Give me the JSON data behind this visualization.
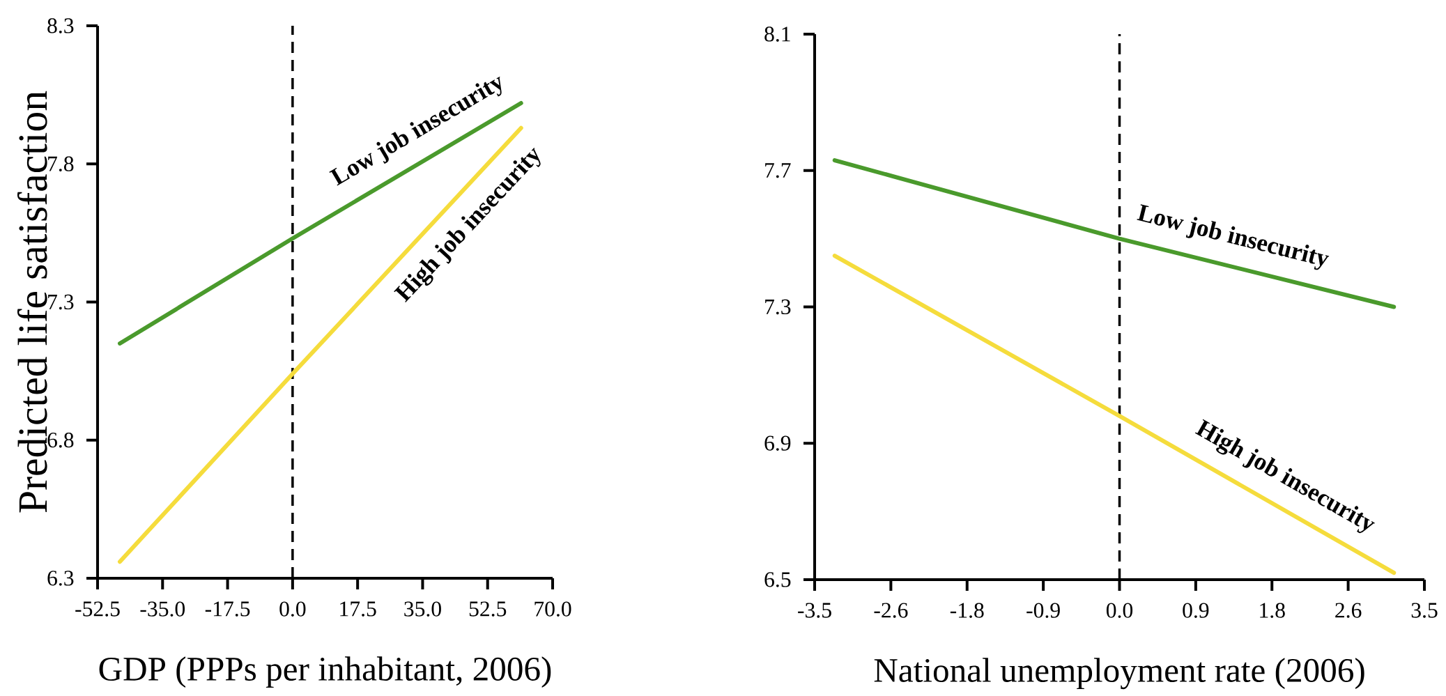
{
  "chart_data": [
    {
      "type": "line",
      "ylabel": "Predicted life satisfaction",
      "xlabel": "GDP (PPPs per inhabitant, 2006)",
      "x": [
        -46.5,
        0,
        61.5
      ],
      "xlim": [
        -52.5,
        70
      ],
      "xticks": [
        {
          "value": -52.5,
          "label": "-52.5"
        },
        {
          "value": -35,
          "label": "-35.0"
        },
        {
          "value": -17.5,
          "label": "-17.5"
        },
        {
          "value": 0,
          "label": "0.0"
        },
        {
          "value": 17.5,
          "label": "17.5"
        },
        {
          "value": 35,
          "label": "35.0"
        },
        {
          "value": 52.5,
          "label": "52.5"
        },
        {
          "value": 70,
          "label": "70.0"
        }
      ],
      "ylim": [
        6.3,
        8.3
      ],
      "yticks": [
        6.3,
        6.8,
        7.3,
        7.8,
        8.3
      ],
      "series": [
        {
          "name": "Low job insecurity",
          "color": "#4a9a2c",
          "values": [
            7.15,
            7.53,
            8.02
          ]
        },
        {
          "name": "High job insecurity",
          "color": "#f5dc3c",
          "values": [
            6.36,
            7.04,
            7.93
          ]
        }
      ],
      "ref_lines": [
        {
          "axis": "x",
          "value": 0,
          "color": "#000000",
          "line_style": "dashed"
        }
      ]
    },
    {
      "type": "line",
      "xlabel": "National unemployment rate (2006)",
      "x": [
        -3.27,
        0,
        3.15
      ],
      "xlim": [
        -3.5,
        3.5
      ],
      "xticks": [
        {
          "value": -3.5,
          "label": "-3.5"
        },
        {
          "value": -2.625,
          "label": "-2.6"
        },
        {
          "value": -1.75,
          "label": "-1.8"
        },
        {
          "value": -0.875,
          "label": "-0.9"
        },
        {
          "value": 0,
          "label": "0.0"
        },
        {
          "value": 0.875,
          "label": "0.9"
        },
        {
          "value": 1.75,
          "label": "1.8"
        },
        {
          "value": 2.625,
          "label": "2.6"
        },
        {
          "value": 3.5,
          "label": "3.5"
        }
      ],
      "ylim": [
        6.5,
        8.1
      ],
      "yticks": [
        6.5,
        6.9,
        7.3,
        7.7,
        8.1
      ],
      "series": [
        {
          "name": "Low job insecurity",
          "color": "#4a9a2c",
          "values": [
            7.73,
            7.5,
            7.3
          ]
        },
        {
          "name": "High job insecurity",
          "color": "#f5dc3c",
          "values": [
            7.45,
            6.98,
            6.52
          ]
        }
      ],
      "ref_lines": [
        {
          "axis": "x",
          "value": 0,
          "color": "#000000",
          "line_style": "dashed"
        }
      ]
    }
  ]
}
